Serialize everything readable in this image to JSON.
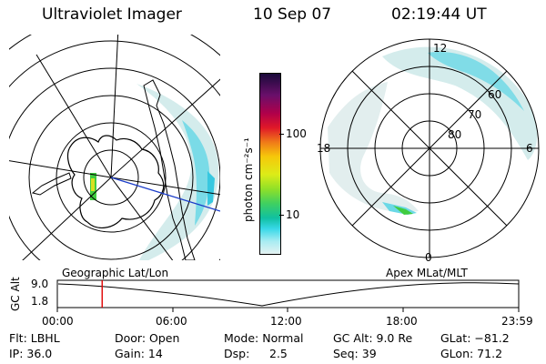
{
  "header": {
    "title": "Ultraviolet Imager",
    "date": "10 Sep 07",
    "time": "02:19:44 UT"
  },
  "colorbar": {
    "unit": "photon cm⁻²s⁻¹",
    "ticks": [
      "100",
      "10"
    ],
    "colors": [
      "#1a0a3a",
      "#6a0f6a",
      "#b0004a",
      "#e01828",
      "#f07a18",
      "#f6c80a",
      "#dcec18",
      "#90e028",
      "#40d060",
      "#10c0a0",
      "#38d8e8",
      "#a8ecf2",
      "#e4f2f2"
    ]
  },
  "left_map": {
    "label": "Geographic Lat/Lon",
    "colors": {
      "land": "#000000",
      "aurora_haze": "#d4ecec",
      "aurora": "#6ad8e6",
      "band_green": "#40cc40",
      "band_yellow": "#d8e020",
      "track": "#1a3cc8"
    }
  },
  "polar_plot": {
    "label": "Apex MLat/MLT",
    "mlt_labels": {
      "top": "12",
      "left": "18",
      "right": "6",
      "bottom": "0"
    },
    "lat_labels": [
      "60",
      "70",
      "80"
    ]
  },
  "altitude_strip": {
    "ylabel": "GC Alt",
    "yticks": [
      "9.0",
      "1.8"
    ],
    "xticks": [
      "00:00",
      "06:00",
      "12:00",
      "18:00",
      "23:59"
    ],
    "marker_color": "#e00000",
    "marker_time_hours": 2.33
  },
  "status": {
    "row1": {
      "filter": "Flt: LBHL",
      "door": "Door: Open",
      "mode": "Mode: Normal",
      "gc_alt": "GC Alt: 9.0 Re",
      "glat": "GLat: −81.2"
    },
    "row2": {
      "ip": "IP: 36.0",
      "gain": "Gain: 14",
      "dsp_label": "Dsp:",
      "dsp_value": "2.5",
      "seq": "Seq: 39",
      "glon": "GLon:  71.2"
    }
  }
}
